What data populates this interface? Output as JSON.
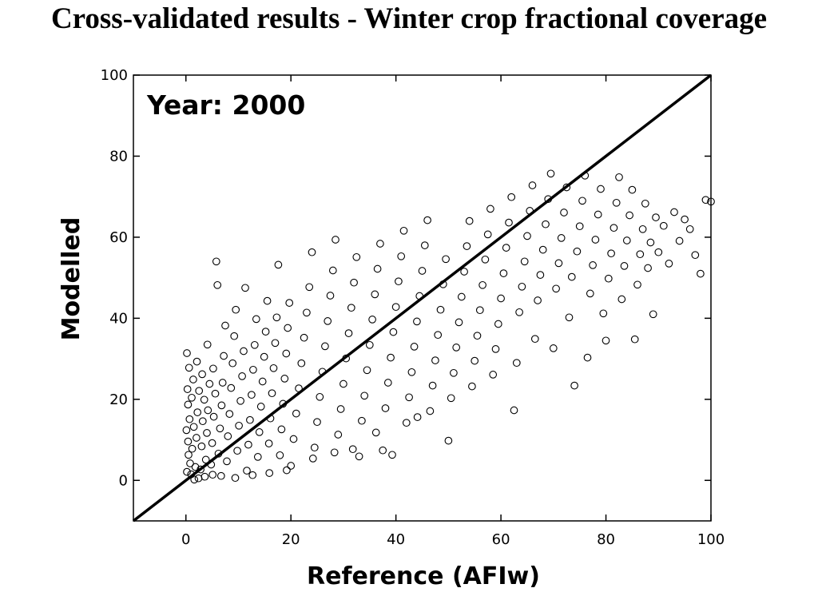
{
  "title": "Cross-validated results - Winter crop fractional coverage",
  "chart_data": {
    "type": "scatter",
    "title": "Cross-validated results - Winter crop fractional coverage",
    "xlabel": "Reference (AFIw)",
    "ylabel": "Modelled",
    "xlim": [
      -10,
      100
    ],
    "ylim": [
      -10,
      100
    ],
    "x_ticks": [
      "0",
      "20",
      "40",
      "60",
      "80",
      "100"
    ],
    "y_ticks": [
      "0",
      "20",
      "40",
      "60",
      "80",
      "100"
    ],
    "annotation": "Year: 2000",
    "grid": false,
    "legend": "none",
    "marker": "open-circle",
    "reference_line": {
      "x": [
        -10,
        100
      ],
      "y": [
        -10,
        100
      ]
    },
    "series": [
      {
        "points": [
          [
            0.2,
            2.1
          ],
          [
            0.5,
            6.3
          ],
          [
            0.1,
            12.4
          ],
          [
            0.4,
            18.7
          ],
          [
            0.3,
            22.5
          ],
          [
            0.6,
            27.8
          ],
          [
            0.2,
            31.4
          ],
          [
            0.8,
            4.2
          ],
          [
            0.4,
            9.6
          ],
          [
            0.7,
            15.1
          ],
          [
            1.0,
            1.5
          ],
          [
            1.2,
            7.8
          ],
          [
            1.5,
            13.2
          ],
          [
            1.1,
            20.4
          ],
          [
            1.4,
            24.9
          ],
          [
            1.8,
            3.3
          ],
          [
            2.0,
            10.5
          ],
          [
            2.2,
            16.8
          ],
          [
            2.5,
            22.1
          ],
          [
            2.1,
            29.3
          ],
          [
            2.8,
            2.7
          ],
          [
            3.0,
            8.4
          ],
          [
            3.2,
            14.6
          ],
          [
            3.5,
            19.9
          ],
          [
            3.1,
            26.2
          ],
          [
            3.8,
            5.1
          ],
          [
            4.0,
            11.7
          ],
          [
            4.2,
            17.3
          ],
          [
            4.5,
            23.8
          ],
          [
            4.1,
            33.5
          ],
          [
            4.8,
            3.9
          ],
          [
            5.0,
            9.2
          ],
          [
            5.3,
            15.7
          ],
          [
            5.6,
            21.4
          ],
          [
            5.2,
            27.6
          ],
          [
            5.8,
            54.0
          ],
          [
            6.0,
            48.2
          ],
          [
            6.2,
            6.6
          ],
          [
            6.5,
            12.8
          ],
          [
            6.8,
            18.5
          ],
          [
            7.0,
            24.1
          ],
          [
            7.2,
            30.7
          ],
          [
            7.5,
            38.2
          ],
          [
            7.8,
            4.7
          ],
          [
            8.0,
            10.9
          ],
          [
            8.3,
            16.4
          ],
          [
            8.6,
            22.8
          ],
          [
            8.9,
            28.9
          ],
          [
            9.2,
            35.6
          ],
          [
            9.5,
            42.1
          ],
          [
            9.8,
            7.3
          ],
          [
            10.1,
            13.5
          ],
          [
            10.4,
            19.6
          ],
          [
            10.7,
            25.7
          ],
          [
            11.0,
            31.9
          ],
          [
            11.3,
            47.5
          ],
          [
            11.6,
            2.4
          ],
          [
            11.9,
            8.8
          ],
          [
            12.2,
            14.9
          ],
          [
            12.5,
            21.1
          ],
          [
            12.8,
            27.3
          ],
          [
            13.1,
            33.4
          ],
          [
            13.4,
            39.8
          ],
          [
            13.7,
            5.8
          ],
          [
            14.0,
            11.9
          ],
          [
            14.3,
            18.2
          ],
          [
            14.6,
            24.4
          ],
          [
            14.9,
            30.5
          ],
          [
            15.2,
            36.7
          ],
          [
            15.5,
            44.3
          ],
          [
            15.8,
            9.1
          ],
          [
            16.1,
            15.3
          ],
          [
            16.4,
            21.5
          ],
          [
            16.7,
            27.7
          ],
          [
            17.0,
            33.9
          ],
          [
            17.3,
            40.2
          ],
          [
            17.6,
            53.2
          ],
          [
            17.9,
            6.2
          ],
          [
            18.2,
            12.6
          ],
          [
            18.5,
            18.9
          ],
          [
            18.8,
            25.1
          ],
          [
            19.1,
            31.3
          ],
          [
            19.4,
            37.6
          ],
          [
            19.7,
            43.8
          ],
          [
            20.0,
            3.6
          ],
          [
            20.5,
            10.2
          ],
          [
            21.0,
            16.5
          ],
          [
            21.5,
            22.7
          ],
          [
            22.0,
            28.9
          ],
          [
            22.5,
            35.2
          ],
          [
            23.0,
            41.4
          ],
          [
            23.5,
            47.7
          ],
          [
            24.0,
            56.3
          ],
          [
            24.5,
            8.1
          ],
          [
            25.0,
            14.4
          ],
          [
            25.5,
            20.6
          ],
          [
            26.0,
            26.8
          ],
          [
            26.5,
            33.1
          ],
          [
            27.0,
            39.3
          ],
          [
            27.5,
            45.6
          ],
          [
            28.0,
            51.8
          ],
          [
            28.5,
            59.4
          ],
          [
            29.0,
            11.3
          ],
          [
            29.5,
            17.6
          ],
          [
            30.0,
            23.8
          ],
          [
            30.5,
            30.1
          ],
          [
            31.0,
            36.3
          ],
          [
            31.5,
            42.6
          ],
          [
            32.0,
            48.8
          ],
          [
            32.5,
            55.1
          ],
          [
            33.0,
            5.9
          ],
          [
            33.5,
            14.7
          ],
          [
            34.0,
            20.9
          ],
          [
            34.5,
            27.2
          ],
          [
            35.0,
            33.4
          ],
          [
            35.5,
            39.7
          ],
          [
            36.0,
            45.9
          ],
          [
            36.5,
            52.2
          ],
          [
            37.0,
            58.4
          ],
          [
            37.5,
            7.4
          ],
          [
            38.0,
            17.8
          ],
          [
            38.5,
            24.1
          ],
          [
            39.0,
            30.3
          ],
          [
            39.5,
            36.6
          ],
          [
            40.0,
            42.8
          ],
          [
            40.5,
            49.1
          ],
          [
            41.0,
            55.3
          ],
          [
            41.5,
            61.6
          ],
          [
            42.0,
            14.2
          ],
          [
            42.5,
            20.5
          ],
          [
            43.0,
            26.7
          ],
          [
            43.5,
            33.0
          ],
          [
            44.0,
            39.2
          ],
          [
            44.5,
            45.5
          ],
          [
            45.0,
            51.7
          ],
          [
            45.5,
            58.0
          ],
          [
            46.0,
            64.2
          ],
          [
            46.5,
            17.1
          ],
          [
            47.0,
            23.4
          ],
          [
            47.5,
            29.6
          ],
          [
            48.0,
            35.9
          ],
          [
            48.5,
            42.1
          ],
          [
            49.0,
            48.4
          ],
          [
            49.5,
            54.6
          ],
          [
            50.0,
            9.8
          ],
          [
            50.5,
            20.3
          ],
          [
            51.0,
            26.5
          ],
          [
            51.5,
            32.8
          ],
          [
            52.0,
            39.0
          ],
          [
            52.5,
            45.3
          ],
          [
            53.0,
            51.5
          ],
          [
            53.5,
            57.8
          ],
          [
            54.0,
            64.0
          ],
          [
            54.5,
            23.2
          ],
          [
            55.0,
            29.5
          ],
          [
            55.5,
            35.7
          ],
          [
            56.0,
            42.0
          ],
          [
            56.5,
            48.2
          ],
          [
            57.0,
            54.5
          ],
          [
            57.5,
            60.7
          ],
          [
            58.0,
            67.0
          ],
          [
            58.5,
            26.1
          ],
          [
            59.0,
            32.4
          ],
          [
            59.5,
            38.6
          ],
          [
            60.0,
            44.9
          ],
          [
            60.5,
            51.1
          ],
          [
            61.0,
            57.4
          ],
          [
            61.5,
            63.6
          ],
          [
            62.0,
            69.9
          ],
          [
            62.5,
            17.3
          ],
          [
            63.0,
            29.0
          ],
          [
            63.5,
            41.5
          ],
          [
            64.0,
            47.8
          ],
          [
            64.5,
            54.0
          ],
          [
            65.0,
            60.3
          ],
          [
            65.5,
            66.5
          ],
          [
            66.0,
            72.8
          ],
          [
            66.5,
            34.9
          ],
          [
            67.0,
            44.4
          ],
          [
            67.5,
            50.7
          ],
          [
            68.0,
            56.9
          ],
          [
            68.5,
            63.2
          ],
          [
            69.0,
            69.4
          ],
          [
            69.5,
            75.7
          ],
          [
            70.0,
            32.6
          ],
          [
            70.5,
            47.3
          ],
          [
            71.0,
            53.6
          ],
          [
            71.5,
            59.8
          ],
          [
            72.0,
            66.1
          ],
          [
            72.5,
            72.3
          ],
          [
            73.0,
            40.2
          ],
          [
            73.5,
            50.2
          ],
          [
            74.0,
            23.4
          ],
          [
            74.5,
            56.5
          ],
          [
            75.0,
            62.7
          ],
          [
            75.5,
            69.0
          ],
          [
            76.0,
            75.2
          ],
          [
            76.5,
            30.3
          ],
          [
            77.0,
            46.1
          ],
          [
            77.5,
            53.1
          ],
          [
            78.0,
            59.4
          ],
          [
            78.5,
            65.6
          ],
          [
            79.0,
            71.9
          ],
          [
            79.5,
            41.2
          ],
          [
            80.0,
            34.5
          ],
          [
            80.5,
            49.8
          ],
          [
            81.0,
            56.0
          ],
          [
            81.5,
            62.3
          ],
          [
            82.0,
            68.5
          ],
          [
            82.5,
            74.8
          ],
          [
            83.0,
            44.7
          ],
          [
            83.5,
            52.9
          ],
          [
            84.0,
            59.2
          ],
          [
            84.5,
            65.4
          ],
          [
            85.0,
            71.7
          ],
          [
            85.5,
            34.8
          ],
          [
            86.0,
            48.3
          ],
          [
            86.5,
            55.8
          ],
          [
            87.0,
            62.0
          ],
          [
            87.5,
            68.3
          ],
          [
            88.0,
            52.4
          ],
          [
            88.5,
            58.7
          ],
          [
            89.0,
            41.0
          ],
          [
            89.5,
            64.9
          ],
          [
            90.0,
            56.3
          ],
          [
            91.0,
            62.8
          ],
          [
            92.0,
            53.5
          ],
          [
            93.0,
            66.2
          ],
          [
            94.0,
            59.1
          ],
          [
            95.0,
            64.4
          ],
          [
            96.0,
            62.0
          ],
          [
            97.0,
            55.6
          ],
          [
            98.0,
            51.0
          ],
          [
            99.0,
            69.2
          ],
          [
            100.0,
            68.8
          ],
          [
            1.6,
            0.2
          ],
          [
            2.4,
            0.5
          ],
          [
            3.6,
            0.9
          ],
          [
            5.1,
            1.4
          ],
          [
            6.7,
            1.1
          ],
          [
            9.4,
            0.6
          ],
          [
            12.7,
            1.3
          ],
          [
            15.9,
            1.8
          ],
          [
            19.2,
            2.5
          ],
          [
            24.2,
            5.4
          ],
          [
            28.3,
            6.9
          ],
          [
            31.8,
            7.7
          ],
          [
            36.2,
            11.8
          ],
          [
            39.3,
            6.3
          ],
          [
            44.1,
            15.6
          ]
        ]
      }
    ]
  }
}
